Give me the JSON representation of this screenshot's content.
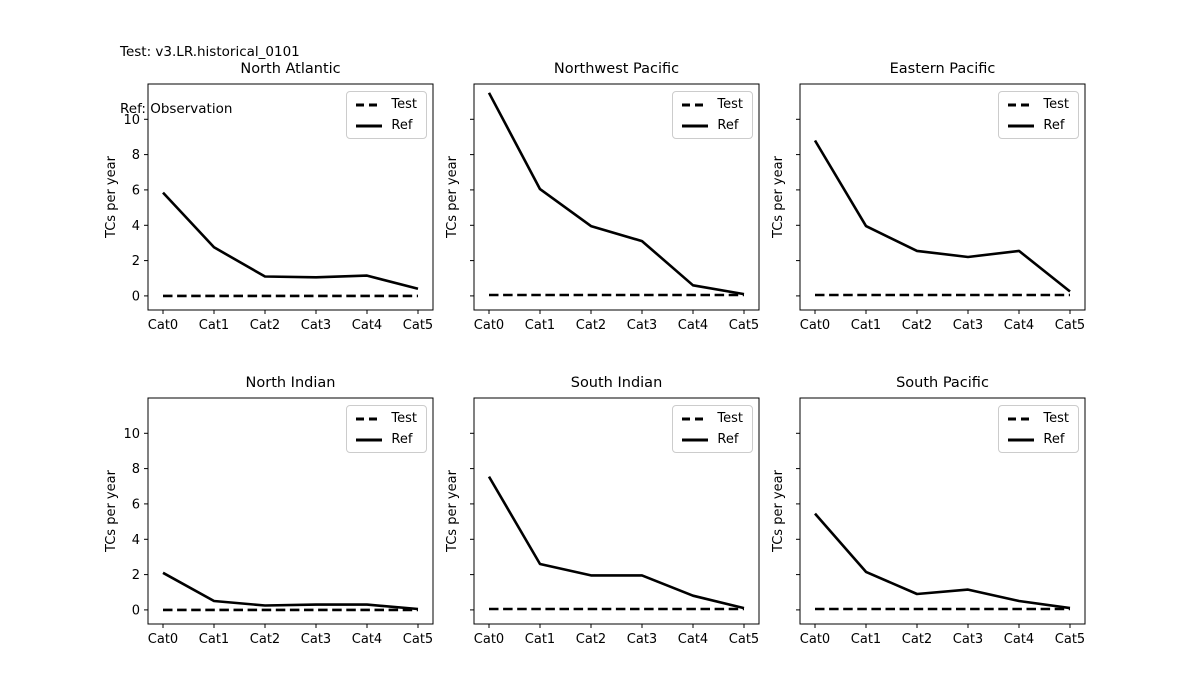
{
  "header": {
    "line1": "Test: v3.LR.historical_0101",
    "line2": "Ref: Observation"
  },
  "chart_data": [
    {
      "type": "line",
      "title": "North Atlantic",
      "categories": [
        "Cat0",
        "Cat1",
        "Cat2",
        "Cat3",
        "Cat4",
        "Cat5"
      ],
      "xlabel": "",
      "ylabel": "TCs per year",
      "ylim": [
        -0.8,
        12.0
      ],
      "yticks": [
        0,
        2,
        4,
        6,
        8,
        10
      ],
      "show_ytick_labels": true,
      "grid": false,
      "legend_position": "upper right",
      "series": [
        {
          "name": "Test",
          "style": "dashed",
          "color": "#000000",
          "values": [
            0,
            0,
            0,
            0,
            0,
            0
          ]
        },
        {
          "name": "Ref",
          "style": "solid",
          "color": "#000000",
          "values": [
            5.85,
            2.75,
            1.1,
            1.05,
            1.15,
            0.4
          ]
        }
      ]
    },
    {
      "type": "line",
      "title": "Northwest Pacific",
      "categories": [
        "Cat0",
        "Cat1",
        "Cat2",
        "Cat3",
        "Cat4",
        "Cat5"
      ],
      "xlabel": "",
      "ylabel": "TCs per year",
      "ylim": [
        -0.8,
        12.0
      ],
      "yticks": [
        0,
        2,
        4,
        6,
        8,
        10
      ],
      "show_ytick_labels": false,
      "grid": false,
      "legend_position": "upper right",
      "series": [
        {
          "name": "Test",
          "style": "dashed",
          "color": "#000000",
          "values": [
            0.05,
            0.05,
            0.05,
            0.05,
            0.05,
            0.05
          ]
        },
        {
          "name": "Ref",
          "style": "solid",
          "color": "#000000",
          "values": [
            11.5,
            6.05,
            3.95,
            3.1,
            0.6,
            0.1
          ]
        }
      ]
    },
    {
      "type": "line",
      "title": "Eastern Pacific",
      "categories": [
        "Cat0",
        "Cat1",
        "Cat2",
        "Cat3",
        "Cat4",
        "Cat5"
      ],
      "xlabel": "",
      "ylabel": "TCs per year",
      "ylim": [
        -0.8,
        12.0
      ],
      "yticks": [
        0,
        2,
        4,
        6,
        8,
        10
      ],
      "show_ytick_labels": false,
      "grid": false,
      "legend_position": "upper right",
      "series": [
        {
          "name": "Test",
          "style": "dashed",
          "color": "#000000",
          "values": [
            0.05,
            0.05,
            0.05,
            0.05,
            0.05,
            0.05
          ]
        },
        {
          "name": "Ref",
          "style": "solid",
          "color": "#000000",
          "values": [
            8.8,
            3.95,
            2.55,
            2.2,
            2.55,
            0.25
          ]
        }
      ]
    },
    {
      "type": "line",
      "title": "North Indian",
      "categories": [
        "Cat0",
        "Cat1",
        "Cat2",
        "Cat3",
        "Cat4",
        "Cat5"
      ],
      "xlabel": "",
      "ylabel": "TCs per year",
      "ylim": [
        -0.8,
        12.0
      ],
      "yticks": [
        0,
        2,
        4,
        6,
        8,
        10
      ],
      "show_ytick_labels": true,
      "grid": false,
      "legend_position": "upper right",
      "series": [
        {
          "name": "Test",
          "style": "dashed",
          "color": "#000000",
          "values": [
            0,
            0,
            0,
            0,
            0,
            0
          ]
        },
        {
          "name": "Ref",
          "style": "solid",
          "color": "#000000",
          "values": [
            2.1,
            0.5,
            0.25,
            0.3,
            0.3,
            0.05
          ]
        }
      ]
    },
    {
      "type": "line",
      "title": "South Indian",
      "categories": [
        "Cat0",
        "Cat1",
        "Cat2",
        "Cat3",
        "Cat4",
        "Cat5"
      ],
      "xlabel": "",
      "ylabel": "TCs per year",
      "ylim": [
        -0.8,
        12.0
      ],
      "yticks": [
        0,
        2,
        4,
        6,
        8,
        10
      ],
      "show_ytick_labels": false,
      "grid": false,
      "legend_position": "upper right",
      "series": [
        {
          "name": "Test",
          "style": "dashed",
          "color": "#000000",
          "values": [
            0.05,
            0.05,
            0.05,
            0.05,
            0.05,
            0.05
          ]
        },
        {
          "name": "Ref",
          "style": "solid",
          "color": "#000000",
          "values": [
            7.55,
            2.6,
            1.95,
            1.95,
            0.8,
            0.1
          ]
        }
      ]
    },
    {
      "type": "line",
      "title": "South Pacific",
      "categories": [
        "Cat0",
        "Cat1",
        "Cat2",
        "Cat3",
        "Cat4",
        "Cat5"
      ],
      "xlabel": "",
      "ylabel": "TCs per year",
      "ylim": [
        -0.8,
        12.0
      ],
      "yticks": [
        0,
        2,
        4,
        6,
        8,
        10
      ],
      "show_ytick_labels": false,
      "grid": false,
      "legend_position": "upper right",
      "series": [
        {
          "name": "Test",
          "style": "dashed",
          "color": "#000000",
          "values": [
            0.05,
            0.05,
            0.05,
            0.05,
            0.05,
            0.05
          ]
        },
        {
          "name": "Ref",
          "style": "solid",
          "color": "#000000",
          "values": [
            5.45,
            2.15,
            0.9,
            1.15,
            0.5,
            0.1
          ]
        }
      ]
    }
  ]
}
